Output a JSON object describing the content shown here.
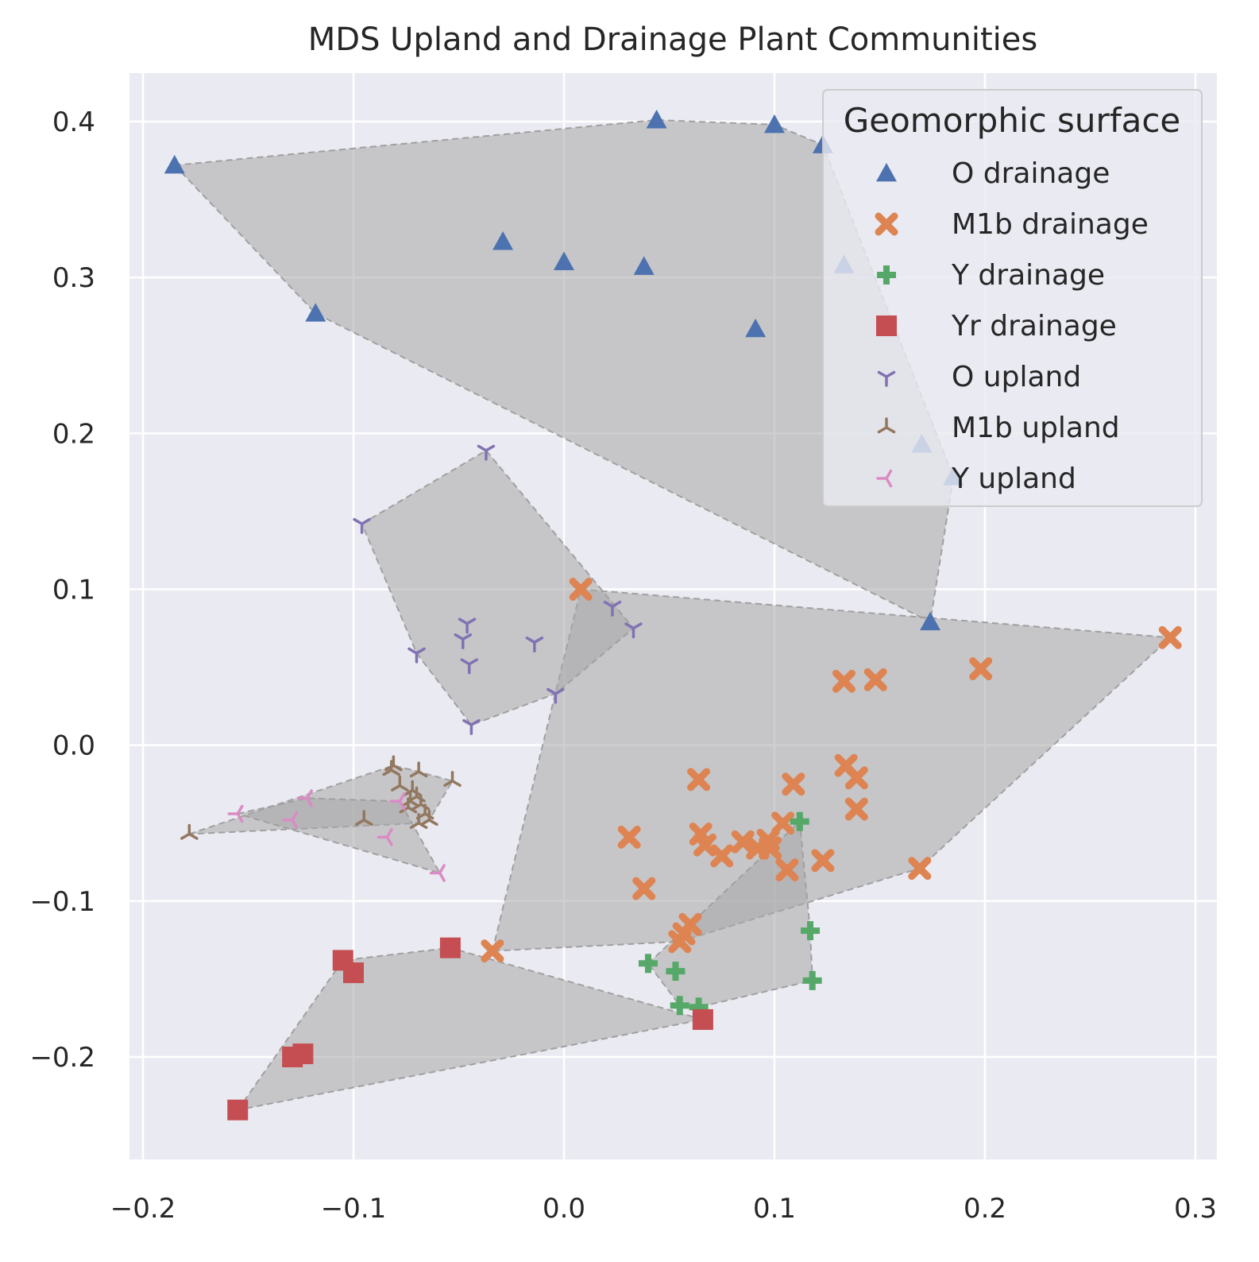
{
  "chart_data": {
    "type": "scatter",
    "title": "MDS Upland and Drainage Plant Communities",
    "xlabel": "",
    "ylabel": "",
    "xlim": [
      -0.207,
      0.311
    ],
    "ylim": [
      -0.262,
      0.431
    ],
    "xticks": [
      -0.2,
      -0.1,
      0.0,
      0.1,
      0.2,
      0.3
    ],
    "xtick_labels": [
      "−0.2",
      "−0.1",
      "0.0",
      "0.1",
      "0.2",
      "0.3"
    ],
    "yticks": [
      -0.2,
      -0.1,
      0.0,
      0.1,
      0.2,
      0.3,
      0.4
    ],
    "ytick_labels": [
      "−0.2",
      "−0.1",
      "0.0",
      "0.1",
      "0.2",
      "0.3",
      "0.4"
    ],
    "grid": true,
    "legend_title": "Geomorphic surface",
    "legend_position": "top-right",
    "hull_color": "#a8a8a8",
    "background_color": "#eaeaf2",
    "series": [
      {
        "name": "O drainage",
        "marker": "triangle",
        "color": "#4c72b0",
        "points": [
          [
            -0.185,
            0.372
          ],
          [
            0.044,
            0.401
          ],
          [
            0.1,
            0.398
          ],
          [
            0.123,
            0.385
          ],
          [
            -0.118,
            0.277
          ],
          [
            -0.029,
            0.323
          ],
          [
            0.0,
            0.31
          ],
          [
            0.038,
            0.307
          ],
          [
            0.133,
            0.308
          ],
          [
            0.091,
            0.267
          ],
          [
            0.17,
            0.193
          ],
          [
            0.185,
            0.172
          ],
          [
            0.174,
            0.079
          ]
        ]
      },
      {
        "name": "M1b drainage",
        "marker": "x",
        "color": "#dd8452",
        "points": [
          [
            0.008,
            0.1
          ],
          [
            0.288,
            0.069
          ],
          [
            0.198,
            0.049
          ],
          [
            0.133,
            0.041
          ],
          [
            0.148,
            0.042
          ],
          [
            0.064,
            -0.022
          ],
          [
            0.109,
            -0.025
          ],
          [
            0.134,
            -0.013
          ],
          [
            0.139,
            -0.021
          ],
          [
            0.139,
            -0.041
          ],
          [
            0.031,
            -0.059
          ],
          [
            0.065,
            -0.057
          ],
          [
            0.067,
            -0.064
          ],
          [
            0.075,
            -0.071
          ],
          [
            0.085,
            -0.062
          ],
          [
            0.092,
            -0.066
          ],
          [
            0.097,
            -0.061
          ],
          [
            0.098,
            -0.066
          ],
          [
            0.104,
            -0.05
          ],
          [
            0.123,
            -0.074
          ],
          [
            0.106,
            -0.08
          ],
          [
            0.169,
            -0.079
          ],
          [
            0.038,
            -0.092
          ],
          [
            0.06,
            -0.115
          ],
          [
            0.057,
            -0.121
          ],
          [
            0.055,
            -0.126
          ],
          [
            -0.034,
            -0.132
          ]
        ]
      },
      {
        "name": "Y drainage",
        "marker": "plus",
        "color": "#55a868",
        "points": [
          [
            0.112,
            -0.049
          ],
          [
            0.117,
            -0.119
          ],
          [
            0.04,
            -0.14
          ],
          [
            0.053,
            -0.145
          ],
          [
            0.118,
            -0.151
          ],
          [
            0.055,
            -0.167
          ],
          [
            0.064,
            -0.168
          ]
        ]
      },
      {
        "name": "Yr drainage",
        "marker": "square",
        "color": "#c44e52",
        "points": [
          [
            -0.054,
            -0.13
          ],
          [
            -0.105,
            -0.138
          ],
          [
            -0.1,
            -0.146
          ],
          [
            0.066,
            -0.176
          ],
          [
            -0.129,
            -0.2
          ],
          [
            -0.124,
            -0.198
          ],
          [
            -0.155,
            -0.234
          ]
        ]
      },
      {
        "name": "O upland",
        "marker": "tri_down",
        "color": "#8172b3",
        "points": [
          [
            -0.037,
            0.189
          ],
          [
            -0.096,
            0.142
          ],
          [
            -0.046,
            0.078
          ],
          [
            -0.048,
            0.068
          ],
          [
            -0.07,
            0.059
          ],
          [
            -0.045,
            0.052
          ],
          [
            -0.014,
            0.066
          ],
          [
            0.023,
            0.089
          ],
          [
            0.033,
            0.075
          ],
          [
            -0.004,
            0.033
          ],
          [
            -0.044,
            0.013
          ]
        ]
      },
      {
        "name": "M1b upland",
        "marker": "tri_up",
        "color": "#937860",
        "points": [
          [
            -0.081,
            -0.013
          ],
          [
            -0.082,
            -0.016
          ],
          [
            -0.069,
            -0.017
          ],
          [
            -0.053,
            -0.023
          ],
          [
            -0.078,
            -0.026
          ],
          [
            -0.072,
            -0.029
          ],
          [
            -0.07,
            -0.033
          ],
          [
            -0.073,
            -0.036
          ],
          [
            -0.068,
            -0.038
          ],
          [
            -0.074,
            -0.04
          ],
          [
            -0.066,
            -0.044
          ],
          [
            -0.064,
            -0.048
          ],
          [
            -0.069,
            -0.05
          ],
          [
            -0.095,
            -0.048
          ],
          [
            -0.178,
            -0.057
          ]
        ]
      },
      {
        "name": "Y upland",
        "marker": "tri_left",
        "color": "#da8bc3",
        "points": [
          [
            -0.122,
            -0.034
          ],
          [
            -0.078,
            -0.036
          ],
          [
            -0.155,
            -0.044
          ],
          [
            -0.129,
            -0.048
          ],
          [
            -0.084,
            -0.059
          ],
          [
            -0.059,
            -0.082
          ]
        ]
      }
    ],
    "hull_draw_order": [
      "O drainage",
      "M1b drainage",
      "Y drainage",
      "Yr drainage",
      "O upland",
      "M1b upland",
      "Y upland"
    ]
  }
}
